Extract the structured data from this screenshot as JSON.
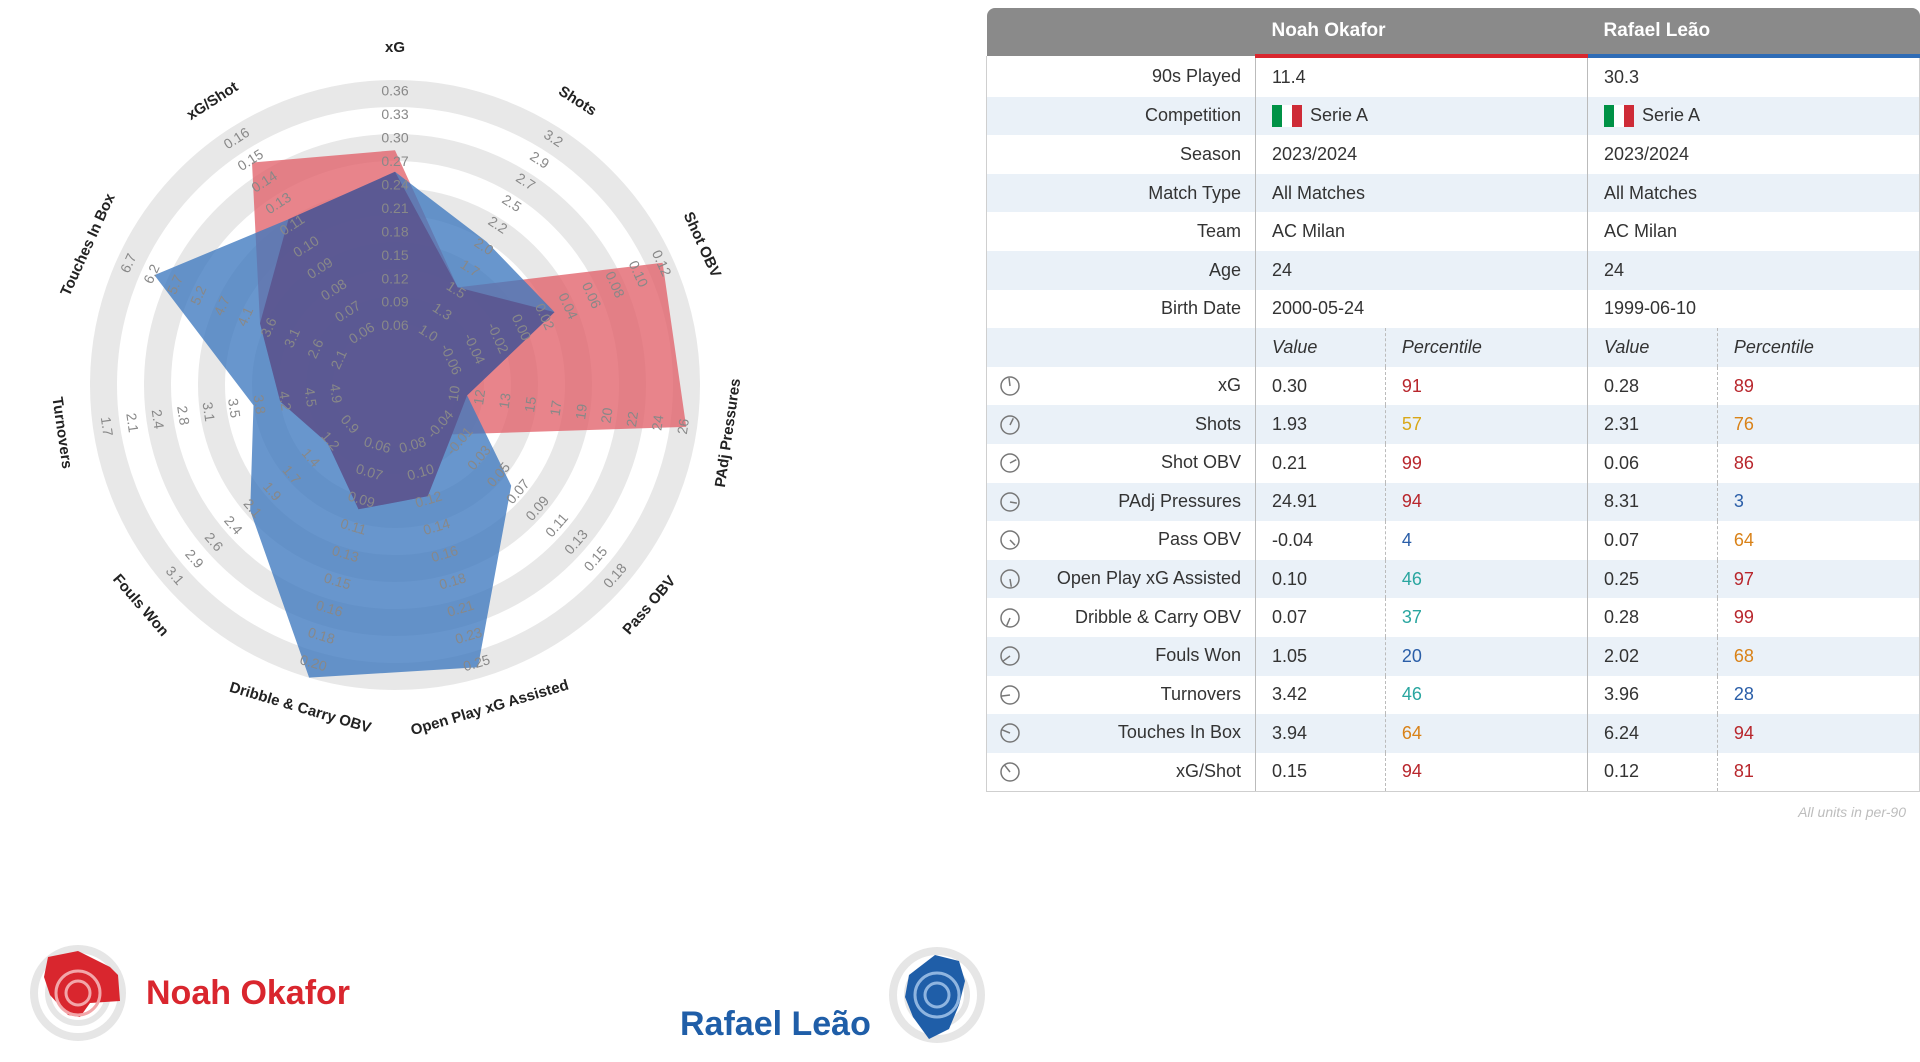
{
  "players": {
    "a": {
      "name": "Noah Okafor",
      "color": "#e1626a"
    },
    "b": {
      "name": "Rafael Leão",
      "color": "#3d78bf"
    }
  },
  "chart_data": {
    "type": "radar",
    "axes": [
      {
        "label": "xG",
        "ticks": [
          "0.06",
          "0.09",
          "0.12",
          "0.15",
          "0.18",
          "0.21",
          "0.24",
          "0.27",
          "0.30",
          "0.33",
          "0.36"
        ],
        "a": 0.3,
        "b": 0.28
      },
      {
        "label": "Shots",
        "ticks": [
          "1.0",
          "1.3",
          "1.5",
          "1.7",
          "2.0",
          "2.2",
          "2.5",
          "2.7",
          "2.9",
          "3.2"
        ],
        "a": 1.93,
        "b": 2.31
      },
      {
        "label": "Shot OBV",
        "ticks": [
          "-0.06",
          "-0.04",
          "-0.02",
          "0.00",
          "0.02",
          "0.04",
          "0.06",
          "0.08",
          "0.10",
          "0.12"
        ],
        "a": 0.21,
        "b": 0.06
      },
      {
        "label": "PAdj Pressures",
        "ticks": [
          "10",
          "12",
          "13",
          "15",
          "17",
          "19",
          "20",
          "22",
          "24",
          "26"
        ],
        "a": 24.91,
        "b": 8.31
      },
      {
        "label": "Pass OBV",
        "ticks": [
          "-0.04",
          "-0.01",
          "0.03",
          "0.05",
          "0.07",
          "0.09",
          "0.11",
          "0.13",
          "0.15",
          "0.18"
        ],
        "a": -0.04,
        "b": 0.07
      },
      {
        "label": "Open Play xG Assisted",
        "ticks": [
          "0.08",
          "0.10",
          "0.12",
          "0.14",
          "0.16",
          "0.18",
          "0.21",
          "0.23",
          "0.25"
        ],
        "a": 0.1,
        "b": 0.25
      },
      {
        "label": "Dribble & Carry OBV",
        "ticks": [
          "0.06",
          "0.07",
          "0.09",
          "0.11",
          "0.13",
          "0.15",
          "0.16",
          "0.18",
          "0.20"
        ],
        "a": 0.07,
        "b": 0.28
      },
      {
        "label": "Fouls Won",
        "ticks": [
          "0.9",
          "1.2",
          "1.4",
          "1.7",
          "1.9",
          "2.1",
          "2.4",
          "2.6",
          "2.9",
          "3.1"
        ],
        "a": 1.05,
        "b": 2.02
      },
      {
        "label": "Turnovers",
        "ticks": [
          "4.9",
          "4.5",
          "4.2",
          "3.8",
          "3.5",
          "3.1",
          "2.8",
          "2.4",
          "2.1",
          "1.7"
        ],
        "a": 3.42,
        "b": 3.96
      },
      {
        "label": "Touches In Box",
        "ticks": [
          "2.1",
          "2.6",
          "3.1",
          "3.6",
          "4.1",
          "4.7",
          "5.2",
          "5.7",
          "6.2",
          "6.7"
        ],
        "a": 3.94,
        "b": 6.24
      },
      {
        "label": "xG/Shot",
        "ticks": [
          "0.06",
          "0.07",
          "0.08",
          "0.09",
          "0.10",
          "0.11",
          "0.13",
          "0.14",
          "0.15",
          "0.16"
        ],
        "a": 0.15,
        "b": 0.12
      }
    ],
    "shape_a": [
      0.74,
      0.3,
      0.96,
      0.96,
      0.15,
      0.3,
      0.35,
      0.2,
      0.3,
      0.42,
      0.85
    ],
    "shape_b": [
      0.66,
      0.5,
      0.52,
      0.14,
      0.44,
      0.96,
      1.0,
      0.58,
      0.4,
      0.85,
      0.6
    ]
  },
  "table": {
    "header": {
      "blank": "",
      "a": "Noah Okafor",
      "b": "Rafael Leão"
    },
    "info_rows": [
      {
        "label": "90s Played",
        "a": "11.4",
        "b": "30.3"
      },
      {
        "label": "Competition",
        "a": "Serie A",
        "b": "Serie A",
        "flag": true
      },
      {
        "label": "Season",
        "a": "2023/2024",
        "b": "2023/2024"
      },
      {
        "label": "Match Type",
        "a": "All Matches",
        "b": "All Matches"
      },
      {
        "label": "Team",
        "a": "AC Milan",
        "b": "AC Milan"
      },
      {
        "label": "Age",
        "a": "24",
        "b": "24"
      },
      {
        "label": "Birth Date",
        "a": "2000-05-24",
        "b": "1999-06-10"
      }
    ],
    "subheader": {
      "value": "Value",
      "percentile": "Percentile"
    },
    "metrics": [
      {
        "label": "xG",
        "a": "0.30",
        "a_pct": "91",
        "b": "0.28",
        "b_pct": "89"
      },
      {
        "label": "Shots",
        "a": "1.93",
        "a_pct": "57",
        "b": "2.31",
        "b_pct": "76"
      },
      {
        "label": "Shot OBV",
        "a": "0.21",
        "a_pct": "99",
        "b": "0.06",
        "b_pct": "86"
      },
      {
        "label": "PAdj Pressures",
        "a": "24.91",
        "a_pct": "94",
        "b": "8.31",
        "b_pct": "3"
      },
      {
        "label": "Pass OBV",
        "a": "-0.04",
        "a_pct": "4",
        "b": "0.07",
        "b_pct": "64"
      },
      {
        "label": "Open Play xG Assisted",
        "a": "0.10",
        "a_pct": "46",
        "b": "0.25",
        "b_pct": "97"
      },
      {
        "label": "Dribble & Carry OBV",
        "a": "0.07",
        "a_pct": "37",
        "b": "0.28",
        "b_pct": "99"
      },
      {
        "label": "Fouls Won",
        "a": "1.05",
        "a_pct": "20",
        "b": "2.02",
        "b_pct": "68"
      },
      {
        "label": "Turnovers",
        "a": "3.42",
        "a_pct": "46",
        "b": "3.96",
        "b_pct": "28"
      },
      {
        "label": "Touches In Box",
        "a": "3.94",
        "a_pct": "64",
        "b": "6.24",
        "b_pct": "94"
      },
      {
        "label": "xG/Shot",
        "a": "0.15",
        "a_pct": "94",
        "b": "0.12",
        "b_pct": "81"
      }
    ],
    "footnote": "All units in per-90"
  },
  "flag_colors": [
    "#009246",
    "#ffffff",
    "#ce2b37"
  ]
}
